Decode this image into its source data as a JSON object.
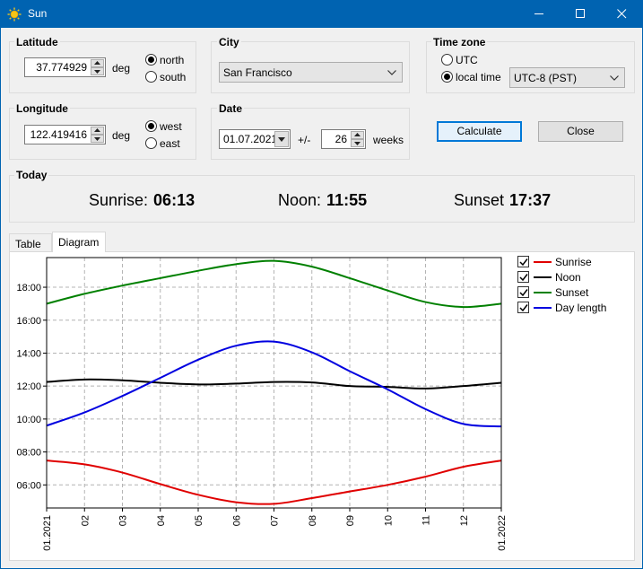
{
  "window": {
    "title": "Sun",
    "icon": "sun-icon"
  },
  "latitude": {
    "title": "Latitude",
    "value": "37.774929",
    "unit": "deg",
    "options": [
      "north",
      "south"
    ],
    "selected": "north"
  },
  "longitude": {
    "title": "Longitude",
    "value": "122.419416",
    "unit": "deg",
    "options": [
      "west",
      "east"
    ],
    "selected": "west"
  },
  "city": {
    "title": "City",
    "value": "San Francisco"
  },
  "date": {
    "title": "Date",
    "value": "01.07.2021",
    "range_label": "+/-",
    "weeks": "26",
    "weeks_label": "weeks"
  },
  "timezone": {
    "title": "Time zone",
    "options": [
      "UTC",
      "local time"
    ],
    "selected": "local time",
    "zone": "UTC-8 (PST)"
  },
  "buttons": {
    "calculate": "Calculate",
    "close": "Close"
  },
  "today": {
    "title": "Today",
    "sunrise_label": "Sunrise:",
    "sunrise": "06:13",
    "noon_label": "Noon:",
    "noon": "11:55",
    "sunset_label": "Sunset",
    "sunset": "17:37"
  },
  "tabs": [
    "Table",
    "Diagram"
  ],
  "active_tab": "Diagram",
  "chart_data": {
    "type": "line",
    "y_ticks": [
      "06:00",
      "08:00",
      "10:00",
      "12:00",
      "14:00",
      "16:00",
      "18:00"
    ],
    "ylim": [
      4.6,
      19.8
    ],
    "x_ticks": [
      "01.2021",
      "02",
      "03",
      "04",
      "05",
      "06",
      "07",
      "08",
      "09",
      "10",
      "11",
      "12",
      "01.2022"
    ],
    "xlim": [
      0,
      12
    ],
    "grid": true,
    "legend_position": "right",
    "x": [
      0,
      1,
      2,
      3,
      4,
      5,
      6,
      7,
      8,
      9,
      10,
      11,
      12
    ],
    "series": [
      {
        "name": "Sunrise",
        "color": "#e00000",
        "checked": true,
        "values": [
          7.48,
          7.25,
          6.75,
          6.05,
          5.4,
          4.95,
          4.85,
          5.2,
          5.6,
          6.0,
          6.5,
          7.1,
          7.48
        ]
      },
      {
        "name": "Noon",
        "color": "#000000",
        "checked": true,
        "values": [
          12.25,
          12.4,
          12.35,
          12.2,
          12.1,
          12.15,
          12.25,
          12.22,
          12.0,
          11.95,
          11.85,
          12.0,
          12.2
        ]
      },
      {
        "name": "Sunset",
        "color": "#008000",
        "checked": true,
        "values": [
          17.0,
          17.6,
          18.1,
          18.55,
          19.0,
          19.4,
          19.6,
          19.25,
          18.55,
          17.8,
          17.1,
          16.8,
          17.0
        ]
      },
      {
        "name": "Day length",
        "color": "#0000e0",
        "checked": true,
        "values": [
          9.6,
          10.4,
          11.4,
          12.5,
          13.6,
          14.45,
          14.7,
          14.05,
          12.9,
          11.8,
          10.6,
          9.7,
          9.55
        ]
      }
    ]
  }
}
